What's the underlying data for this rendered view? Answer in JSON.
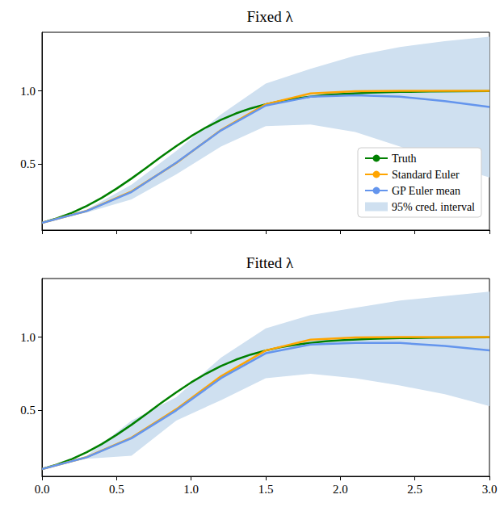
{
  "chart_data": [
    {
      "type": "line",
      "title": "Fixed λ",
      "xlim": [
        0,
        3
      ],
      "ylim": [
        0.05,
        1.4
      ],
      "xticks": [
        {
          "value": 0,
          "label": "0.0"
        },
        0.5,
        {
          "value": 1,
          "label": "1.0"
        },
        1.5,
        {
          "value": 2,
          "label": "2.0"
        },
        2.5,
        {
          "value": 3,
          "label": "3.0"
        }
      ],
      "yticks": [
        0.5,
        {
          "value": 1,
          "label": "1.0"
        }
      ],
      "tick_labels": "y",
      "legend": "lower right",
      "series": [
        {
          "name": "Truth",
          "color": "#008000",
          "x": [
            0,
            0.1,
            0.2,
            0.3,
            0.4,
            0.5,
            0.6,
            0.7,
            0.8,
            0.9,
            1.0,
            1.1,
            1.2,
            1.3,
            1.4,
            1.5,
            1.6,
            1.7,
            1.8,
            1.9,
            2.0,
            2.2,
            2.4,
            2.6,
            2.8,
            3.0
          ],
          "values": [
            0.1,
            0.13,
            0.168,
            0.215,
            0.27,
            0.333,
            0.402,
            0.476,
            0.551,
            0.623,
            0.691,
            0.751,
            0.803,
            0.846,
            0.881,
            0.909,
            0.931,
            0.948,
            0.961,
            0.971,
            0.978,
            0.988,
            0.993,
            0.996,
            0.998,
            0.999
          ]
        },
        {
          "name": "Standard Euler",
          "color": "#ffa500",
          "x": [
            0,
            0.3,
            0.6,
            0.9,
            1.2,
            1.5,
            1.8,
            2.1,
            2.4,
            2.7,
            3.0
          ],
          "values": [
            0.1,
            0.181,
            0.314,
            0.508,
            0.733,
            0.909,
            0.983,
            0.998,
            1.0,
            1.0,
            1.0
          ]
        },
        {
          "name": "GP Euler mean",
          "color": "#6495ed",
          "x": [
            0,
            0.3,
            0.6,
            0.9,
            1.2,
            1.5,
            1.8,
            2.1,
            2.4,
            2.7,
            3.0
          ],
          "values": [
            0.1,
            0.18,
            0.31,
            0.51,
            0.73,
            0.9,
            0.96,
            0.97,
            0.96,
            0.93,
            0.89
          ]
        },
        {
          "name": "95% cred. interval",
          "type": "band",
          "color": "#cfe0f0",
          "x": [
            0,
            0.3,
            0.6,
            0.9,
            1.2,
            1.5,
            1.8,
            2.1,
            2.4,
            2.7,
            3.0
          ],
          "lower": [
            0.1,
            0.17,
            0.26,
            0.43,
            0.62,
            0.76,
            0.77,
            0.72,
            0.62,
            0.5,
            0.41
          ],
          "upper": [
            0.1,
            0.19,
            0.36,
            0.59,
            0.84,
            1.05,
            1.15,
            1.24,
            1.3,
            1.34,
            1.37
          ]
        }
      ]
    },
    {
      "type": "line",
      "title": "Fitted λ",
      "xlim": [
        0,
        3
      ],
      "ylim": [
        0.05,
        1.4
      ],
      "xticks": [
        {
          "value": 0,
          "label": "0.0"
        },
        0.5,
        {
          "value": 1,
          "label": "1.0"
        },
        1.5,
        {
          "value": 2,
          "label": "2.0"
        },
        2.5,
        {
          "value": 3,
          "label": "3.0"
        }
      ],
      "yticks": [
        0.5,
        {
          "value": 1,
          "label": "1.0"
        }
      ],
      "series": [
        {
          "name": "Truth",
          "color": "#008000",
          "x": [
            0,
            0.1,
            0.2,
            0.3,
            0.4,
            0.5,
            0.6,
            0.7,
            0.8,
            0.9,
            1.0,
            1.1,
            1.2,
            1.3,
            1.4,
            1.5,
            1.6,
            1.7,
            1.8,
            1.9,
            2.0,
            2.2,
            2.4,
            2.6,
            2.8,
            3.0
          ],
          "values": [
            0.1,
            0.13,
            0.168,
            0.215,
            0.27,
            0.333,
            0.402,
            0.476,
            0.551,
            0.623,
            0.691,
            0.751,
            0.803,
            0.846,
            0.881,
            0.909,
            0.931,
            0.948,
            0.961,
            0.971,
            0.978,
            0.988,
            0.993,
            0.996,
            0.998,
            0.999
          ]
        },
        {
          "name": "Standard Euler",
          "color": "#ffa500",
          "x": [
            0,
            0.3,
            0.6,
            0.9,
            1.2,
            1.5,
            1.8,
            2.1,
            2.4,
            2.7,
            3.0
          ],
          "values": [
            0.1,
            0.181,
            0.314,
            0.508,
            0.733,
            0.909,
            0.983,
            0.998,
            1.0,
            1.0,
            1.0
          ]
        },
        {
          "name": "GP Euler mean",
          "color": "#6495ed",
          "x": [
            0,
            0.3,
            0.6,
            0.9,
            1.2,
            1.5,
            1.8,
            2.1,
            2.4,
            2.7,
            3.0
          ],
          "values": [
            0.1,
            0.18,
            0.31,
            0.5,
            0.72,
            0.89,
            0.95,
            0.96,
            0.96,
            0.94,
            0.91
          ]
        },
        {
          "name": "95% cred. interval",
          "type": "band",
          "color": "#cfe0f0",
          "x": [
            0,
            0.3,
            0.6,
            0.9,
            1.2,
            1.5,
            1.8,
            2.1,
            2.4,
            2.7,
            3.0
          ],
          "lower": [
            0.1,
            0.17,
            0.19,
            0.43,
            0.57,
            0.72,
            0.75,
            0.72,
            0.67,
            0.61,
            0.53
          ],
          "upper": [
            0.1,
            0.19,
            0.43,
            0.59,
            0.86,
            1.06,
            1.15,
            1.2,
            1.25,
            1.28,
            1.31
          ]
        }
      ]
    }
  ]
}
